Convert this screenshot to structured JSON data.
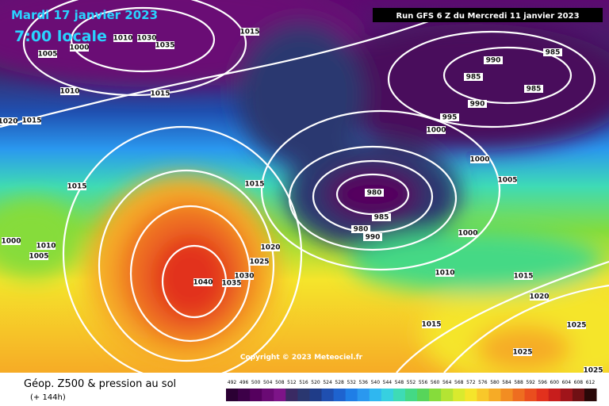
{
  "header": {
    "date": "Mardi 17 janvier 2023",
    "time": "7:00 locale",
    "run": "Run GFS 6 Z du Mercredi 11 janvier 2023"
  },
  "copyright": "Copyright © 2023 Meteociel.fr",
  "footer": {
    "title": "Géop. Z500 & pression au sol",
    "lead": "(+ 144h)"
  },
  "isobar_labels": [
    1005,
    1000,
    1010,
    1030,
    1035,
    1015,
    1010,
    1015,
    1020,
    1015,
    990,
    985,
    985,
    985,
    990,
    995,
    1000,
    1000,
    1005,
    1015,
    1015,
    980,
    985,
    980,
    990,
    1000,
    1000,
    1010,
    1005,
    1020,
    1025,
    1030,
    1035,
    1040,
    1010,
    1015,
    1020,
    1025,
    1015,
    1025,
    1025
  ],
  "colorbar": {
    "labels": [
      492,
      496,
      500,
      504,
      508,
      512,
      516,
      520,
      524,
      528,
      532,
      536,
      540,
      544,
      548,
      552,
      556,
      560,
      564,
      568,
      572,
      576,
      580,
      584,
      588,
      592,
      596,
      600,
      604,
      608,
      612
    ],
    "colors": [
      "#2b0033",
      "#3d0048",
      "#55005e",
      "#6a0a74",
      "#7d1488",
      "#3a2a63",
      "#2a3770",
      "#1f3c88",
      "#1f4fb0",
      "#1e63cf",
      "#1f7ee6",
      "#2a98ef",
      "#2fb7f0",
      "#37d0e0",
      "#3edbb5",
      "#44d985",
      "#57d55a",
      "#86dc3b",
      "#b4e433",
      "#d9ea2e",
      "#f5e52b",
      "#f8c82a",
      "#f6ab26",
      "#f28d22",
      "#ee6d20",
      "#ea4e1e",
      "#e2311d",
      "#c81d1c",
      "#a0141a",
      "#701014",
      "#2a0808"
    ]
  }
}
